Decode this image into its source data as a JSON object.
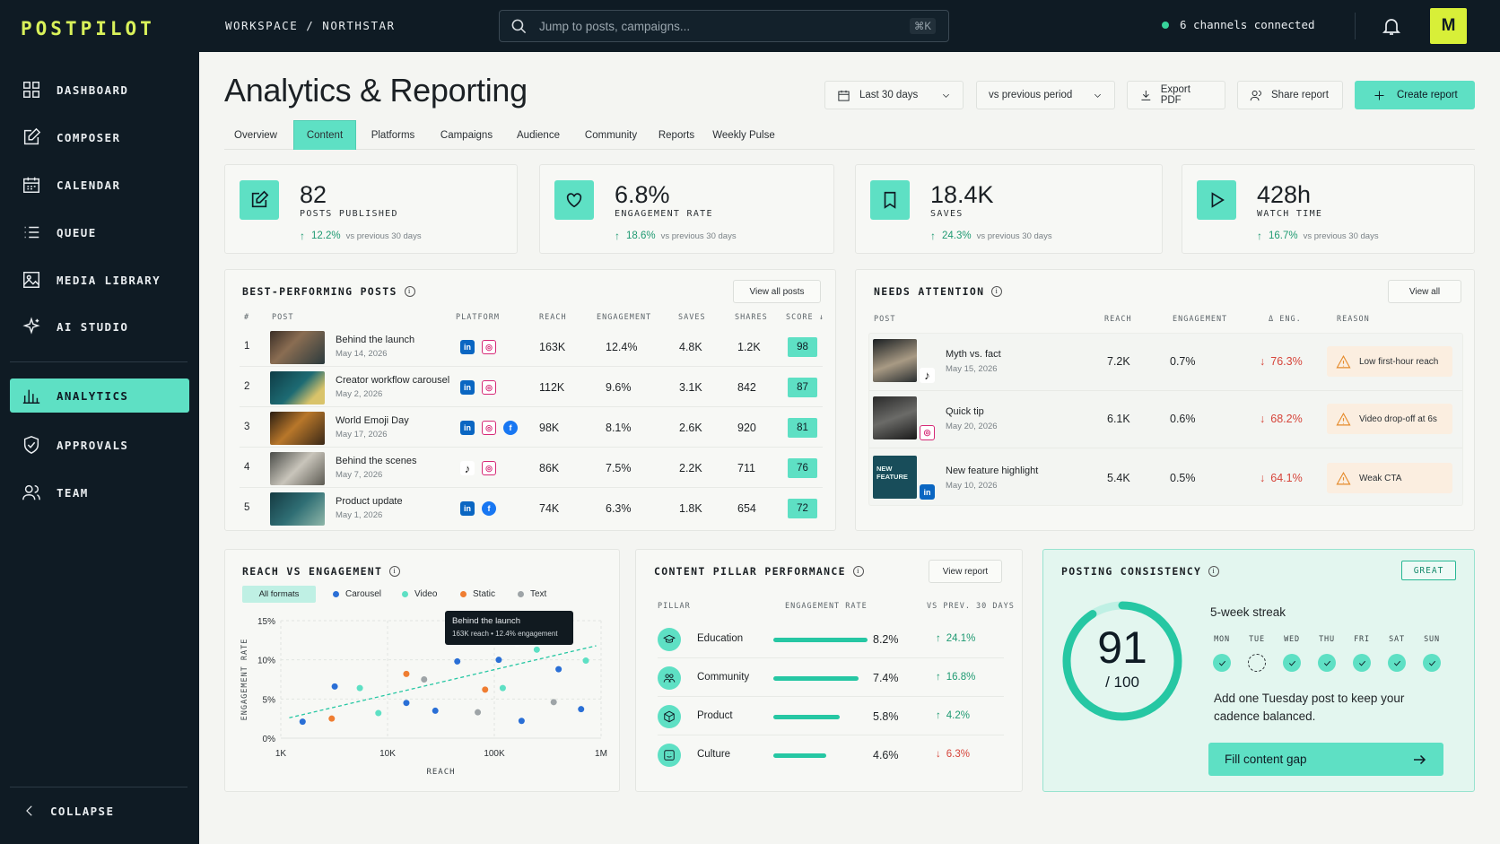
{
  "app": {
    "logo": "POSTPILOT"
  },
  "sidebar": {
    "items": [
      {
        "label": "DASHBOARD",
        "icon": "grid-icon"
      },
      {
        "label": "COMPOSER",
        "icon": "compose-icon"
      },
      {
        "label": "CALENDAR",
        "icon": "calendar-icon"
      },
      {
        "label": "QUEUE",
        "icon": "list-icon"
      },
      {
        "label": "MEDIA LIBRARY",
        "icon": "image-icon"
      },
      {
        "label": "AI STUDIO",
        "icon": "sparkle-icon"
      },
      {
        "label": "ANALYTICS",
        "icon": "bar-chart-icon",
        "active": true
      },
      {
        "label": "APPROVALS",
        "icon": "shield-check-icon"
      },
      {
        "label": "TEAM",
        "icon": "users-icon"
      }
    ],
    "collapse_label": "COLLAPSE"
  },
  "topbar": {
    "breadcrumb": "WORKSPACE / NORTHSTAR",
    "search_placeholder": "Jump to posts, campaigns...",
    "search_shortcut": "⌘K",
    "channels": "6 channels connected",
    "avatar_initial": "M"
  },
  "page": {
    "title": "Analytics & Reporting"
  },
  "controls": {
    "date_range": "Last 30 days",
    "compare": "vs previous period",
    "export": "Export PDF",
    "share": "Share report",
    "create": "Create report"
  },
  "tabs": [
    "Overview",
    "Content",
    "Platforms",
    "Campaigns",
    "Audience",
    "Community",
    "Reports",
    "Weekly Pulse"
  ],
  "active_tab": "Content",
  "kpis": [
    {
      "value": "82",
      "label": "POSTS PUBLISHED",
      "delta": "12.2%",
      "vs": "vs previous 30 days"
    },
    {
      "value": "6.8%",
      "label": "ENGAGEMENT RATE",
      "delta": "18.6%",
      "vs": "vs previous 30 days"
    },
    {
      "value": "18.4K",
      "label": "SAVES",
      "delta": "24.3%",
      "vs": "vs previous 30 days"
    },
    {
      "value": "428h",
      "label": "WATCH TIME",
      "delta": "16.7%",
      "vs": "vs previous 30 days"
    }
  ],
  "best_posts": {
    "title": "BEST-PERFORMING POSTS",
    "view_all": "View all posts",
    "columns": [
      "#",
      "POST",
      "PLATFORM",
      "REACH",
      "ENGAGEMENT",
      "SAVES",
      "SHARES",
      "SCORE ↓"
    ],
    "rows": [
      {
        "n": "1",
        "title": "Behind the launch",
        "date": "May 14, 2026",
        "reach": "163K",
        "engagement": "12.4%",
        "saves": "4.8K",
        "shares": "1.2K",
        "score": "98"
      },
      {
        "n": "2",
        "title": "Creator workflow carousel",
        "date": "May 2, 2026",
        "reach": "112K",
        "engagement": "9.6%",
        "saves": "3.1K",
        "shares": "842",
        "score": "87"
      },
      {
        "n": "3",
        "title": "World Emoji Day",
        "date": "May 17, 2026",
        "reach": "98K",
        "engagement": "8.1%",
        "saves": "2.6K",
        "shares": "920",
        "score": "81"
      },
      {
        "n": "4",
        "title": "Behind the scenes",
        "date": "May 7, 2026",
        "reach": "86K",
        "engagement": "7.5%",
        "saves": "2.2K",
        "shares": "711",
        "score": "76"
      },
      {
        "n": "5",
        "title": "Product update",
        "date": "May 1, 2026",
        "reach": "74K",
        "engagement": "6.3%",
        "saves": "1.8K",
        "shares": "654",
        "score": "72"
      }
    ]
  },
  "attention": {
    "title": "NEEDS ATTENTION",
    "view_all": "View all",
    "columns": [
      "POST",
      "REACH",
      "ENGAGEMENT",
      "Δ ENG.",
      "REASON"
    ],
    "rows": [
      {
        "title": "Myth vs. fact",
        "date": "May 15, 2026",
        "reach": "7.2K",
        "engagement": "0.7%",
        "delta": "76.3%",
        "reason": "Low first-hour reach"
      },
      {
        "title": "Quick tip",
        "date": "May 20, 2026",
        "reach": "6.1K",
        "engagement": "0.6%",
        "delta": "68.2%",
        "reason": "Video drop-off at 6s"
      },
      {
        "title": "New feature highlight",
        "date": "May 10, 2026",
        "reach": "5.4K",
        "engagement": "0.5%",
        "delta": "64.1%",
        "reason": "Weak CTA"
      }
    ],
    "thumb_text": "NEW FEATURE"
  },
  "scatter": {
    "title": "REACH VS ENGAGEMENT",
    "filter_all": "All formats",
    "legend": [
      {
        "name": "Carousel",
        "color": "#2a6fd6"
      },
      {
        "name": "Video",
        "color": "#5ee0c4"
      },
      {
        "name": "Static",
        "color": "#ef7d31"
      },
      {
        "name": "Text",
        "color": "#9ea4a7"
      }
    ],
    "tooltip_title": "Behind the launch",
    "tooltip_body": "163K reach • 12.4% engagement"
  },
  "chart_data": {
    "type": "scatter",
    "xlabel": "REACH",
    "ylabel": "ENGAGEMENT RATE",
    "x_scale": "log",
    "xlim": [
      1000,
      1000000
    ],
    "ylim": [
      0,
      15
    ],
    "x_ticks": [
      "1K",
      "10K",
      "100K",
      "1M"
    ],
    "y_ticks": [
      "0%",
      "5%",
      "10%",
      "15%"
    ],
    "grid": true,
    "series": [
      {
        "name": "Carousel",
        "points": [
          [
            1600,
            2.1
          ],
          [
            3200,
            6.6
          ],
          [
            15000,
            4.5
          ],
          [
            28000,
            3.5
          ],
          [
            45000,
            9.8
          ],
          [
            110000,
            10.0
          ],
          [
            180000,
            2.2
          ],
          [
            400000,
            8.8
          ],
          [
            650000,
            3.7
          ]
        ]
      },
      {
        "name": "Video",
        "points": [
          [
            5500,
            6.4
          ],
          [
            8200,
            3.2
          ],
          [
            120000,
            6.4
          ],
          [
            250000,
            11.3
          ],
          [
            720000,
            9.9
          ],
          [
            163000,
            12.4
          ]
        ]
      },
      {
        "name": "Static",
        "points": [
          [
            3000,
            2.5
          ],
          [
            15000,
            8.2
          ],
          [
            82000,
            6.2
          ]
        ]
      },
      {
        "name": "Text",
        "points": [
          [
            22000,
            7.5
          ],
          [
            70000,
            3.3
          ],
          [
            360000,
            4.6
          ]
        ]
      }
    ],
    "trend": [
      [
        1200,
        2.6
      ],
      [
        900000,
        11.8
      ]
    ]
  },
  "pillars": {
    "title": "CONTENT PILLAR PERFORMANCE",
    "view_report": "View report",
    "columns": [
      "PILLAR",
      "ENGAGEMENT RATE",
      "VS PREV. 30 DAYS"
    ],
    "rows": [
      {
        "name": "Education",
        "rate": "8.2%",
        "share": 0.82,
        "delta": "24.1%",
        "dir": "up"
      },
      {
        "name": "Community",
        "rate": "7.4%",
        "share": 0.74,
        "delta": "16.8%",
        "dir": "up"
      },
      {
        "name": "Product",
        "rate": "5.8%",
        "share": 0.58,
        "delta": "4.2%",
        "dir": "up"
      },
      {
        "name": "Culture",
        "rate": "4.6%",
        "share": 0.46,
        "delta": "6.3%",
        "dir": "down"
      }
    ]
  },
  "consistency": {
    "title": "POSTING CONSISTENCY",
    "badge": "GREAT",
    "score": "91",
    "out_of": "/ 100",
    "score_fraction": 0.91,
    "streak": "5-week streak",
    "days": [
      "MON",
      "TUE",
      "WED",
      "THU",
      "FRI",
      "SAT",
      "SUN"
    ],
    "posted": [
      true,
      false,
      true,
      true,
      true,
      true,
      true
    ],
    "tip": "Add one Tuesday post to keep your cadence balanced.",
    "cta": "Fill content gap"
  }
}
